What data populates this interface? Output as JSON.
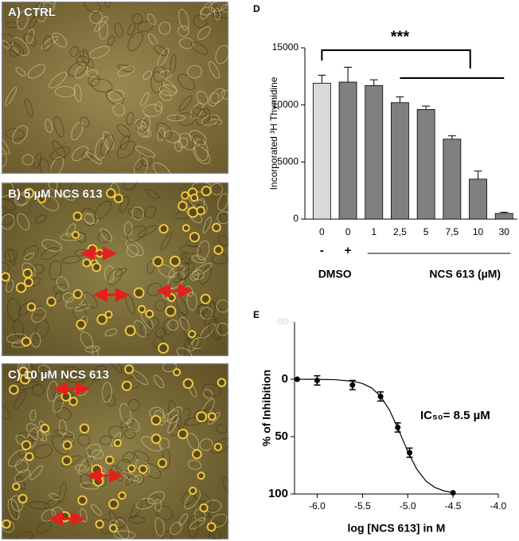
{
  "panels": [
    {
      "label": "A) CTRL"
    },
    {
      "label": "B) 5 µM NCS 613"
    },
    {
      "label": "C) 10 µM NCS 613"
    }
  ],
  "chart_data": [
    {
      "type": "bar",
      "panel_label": "D",
      "y_label": "Incorporated ³H Thymidine",
      "categories": [
        "0",
        "0",
        "1",
        "2,5",
        "5",
        "7,5",
        "10",
        "30"
      ],
      "sub_labels": [
        "-",
        "+"
      ],
      "group_labels": [
        "DMSO",
        "NCS 613 (µM)"
      ],
      "values": [
        11900,
        12000,
        11700,
        10200,
        9600,
        7000,
        3500,
        500
      ],
      "errors": [
        700,
        1300,
        500,
        500,
        300,
        300,
        700,
        100
      ],
      "colors": [
        "#d9d9d9",
        "#808080",
        "#808080",
        "#808080",
        "#808080",
        "#808080",
        "#808080",
        "#808080"
      ],
      "ylim": [
        0,
        15000
      ],
      "yticks": [
        0,
        5000,
        10000,
        15000
      ],
      "significance": "***"
    },
    {
      "type": "scatter",
      "panel_label": "E",
      "x_label": "log [NCS 613] in M",
      "y_label": "% of Inhibition",
      "x": [
        -6.22,
        -6.0,
        -5.61,
        -5.3,
        -5.11,
        -4.98,
        -4.5
      ],
      "values": [
        0,
        1,
        5,
        15,
        42,
        64,
        99
      ],
      "errors": [
        0,
        4,
        4,
        4,
        4,
        4,
        0
      ],
      "fit": {
        "x": [
          -6.2,
          -6.0,
          -5.8,
          -5.6,
          -5.5,
          -5.4,
          -5.3,
          -5.2,
          -5.1,
          -5.0,
          -4.9,
          -4.8,
          -4.7,
          -4.6,
          -4.5
        ],
        "values": [
          0,
          0.1,
          0.4,
          1.8,
          3.7,
          7.5,
          14.8,
          27.1,
          44.3,
          62.9,
          78.4,
          88.6,
          94.3,
          97.3,
          98.7
        ]
      },
      "annotation": "IC₅₀= 8.5 µM",
      "xlim": [
        -6.25,
        -4.0
      ],
      "xticks": [
        {
          "value": -6,
          "label": "-6.0"
        },
        -5.5,
        {
          "value": -5,
          "label": "-5.0"
        },
        -4.5,
        {
          "value": -4,
          "label": "-4.0"
        }
      ],
      "ylim": [
        -50,
        100
      ],
      "y_inverted": true,
      "yticks": [
        -50,
        0,
        50,
        100
      ],
      "color": "#000000"
    }
  ]
}
